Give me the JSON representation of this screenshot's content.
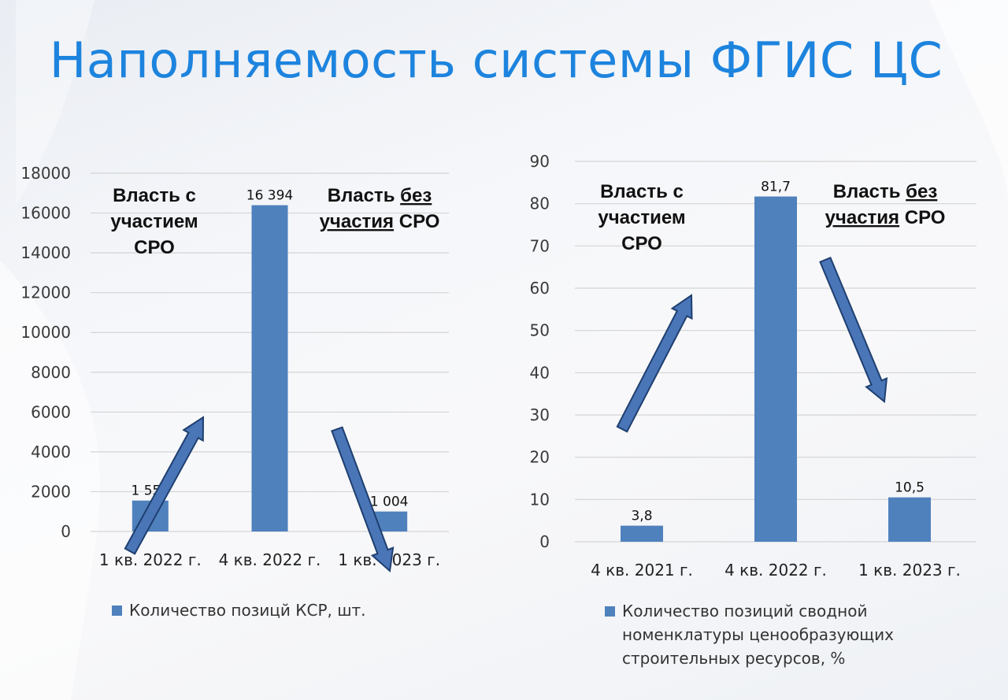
{
  "slide": {
    "title": "Наполняемость системы ФГИС ЦС"
  },
  "colors": {
    "title": "#1d84de",
    "bar": "#4f81bd",
    "arrow_fill": "#4a76b8",
    "arrow_stroke": "#1f3f6f"
  },
  "chart_data": [
    {
      "type": "bar",
      "categories": [
        "1 кв. 2022 г.",
        "4 кв. 2022 г.",
        "1 кв. 2023 г."
      ],
      "series": [
        {
          "name": "Количество позицй КСР, шт.",
          "values": [
            1554,
            16394,
            1004
          ],
          "labels": [
            "1 554",
            "16 394",
            "1 004"
          ]
        }
      ],
      "ylim": [
        0,
        18000
      ],
      "yticks": [
        0,
        2000,
        4000,
        6000,
        8000,
        10000,
        12000,
        14000,
        16000,
        18000
      ],
      "grid": true,
      "legend": "bottom",
      "annotations": {
        "left": [
          "Власть с",
          "участием",
          "СРО"
        ],
        "right": [
          [
            "Власть ",
            "без"
          ],
          [
            "участия",
            " СРО"
          ]
        ]
      },
      "arrows": [
        "up",
        "down"
      ]
    },
    {
      "type": "bar",
      "categories": [
        "4 кв. 2021 г.",
        "4 кв. 2022 г.",
        "1 кв. 2023 г."
      ],
      "series": [
        {
          "name": "Количество позиций сводной номенклатуры ценообразующих строительных ресурсов, %",
          "name_lines": [
            "Количество позиций сводной",
            "номенклатуры ценообразующих",
            "строительных ресурсов, %"
          ],
          "values": [
            3.8,
            81.7,
            10.5
          ],
          "labels": [
            "3,8",
            "81,7",
            "10,5"
          ]
        }
      ],
      "ylim": [
        0,
        90
      ],
      "yticks": [
        0,
        10,
        20,
        30,
        40,
        50,
        60,
        70,
        80,
        90
      ],
      "grid": true,
      "legend": "bottom",
      "annotations": {
        "left": [
          "Власть с",
          "участием",
          "СРО"
        ],
        "right": [
          [
            "Власть ",
            "без"
          ],
          [
            "участия",
            " СРО"
          ]
        ]
      },
      "arrows": [
        "up",
        "down"
      ]
    }
  ]
}
